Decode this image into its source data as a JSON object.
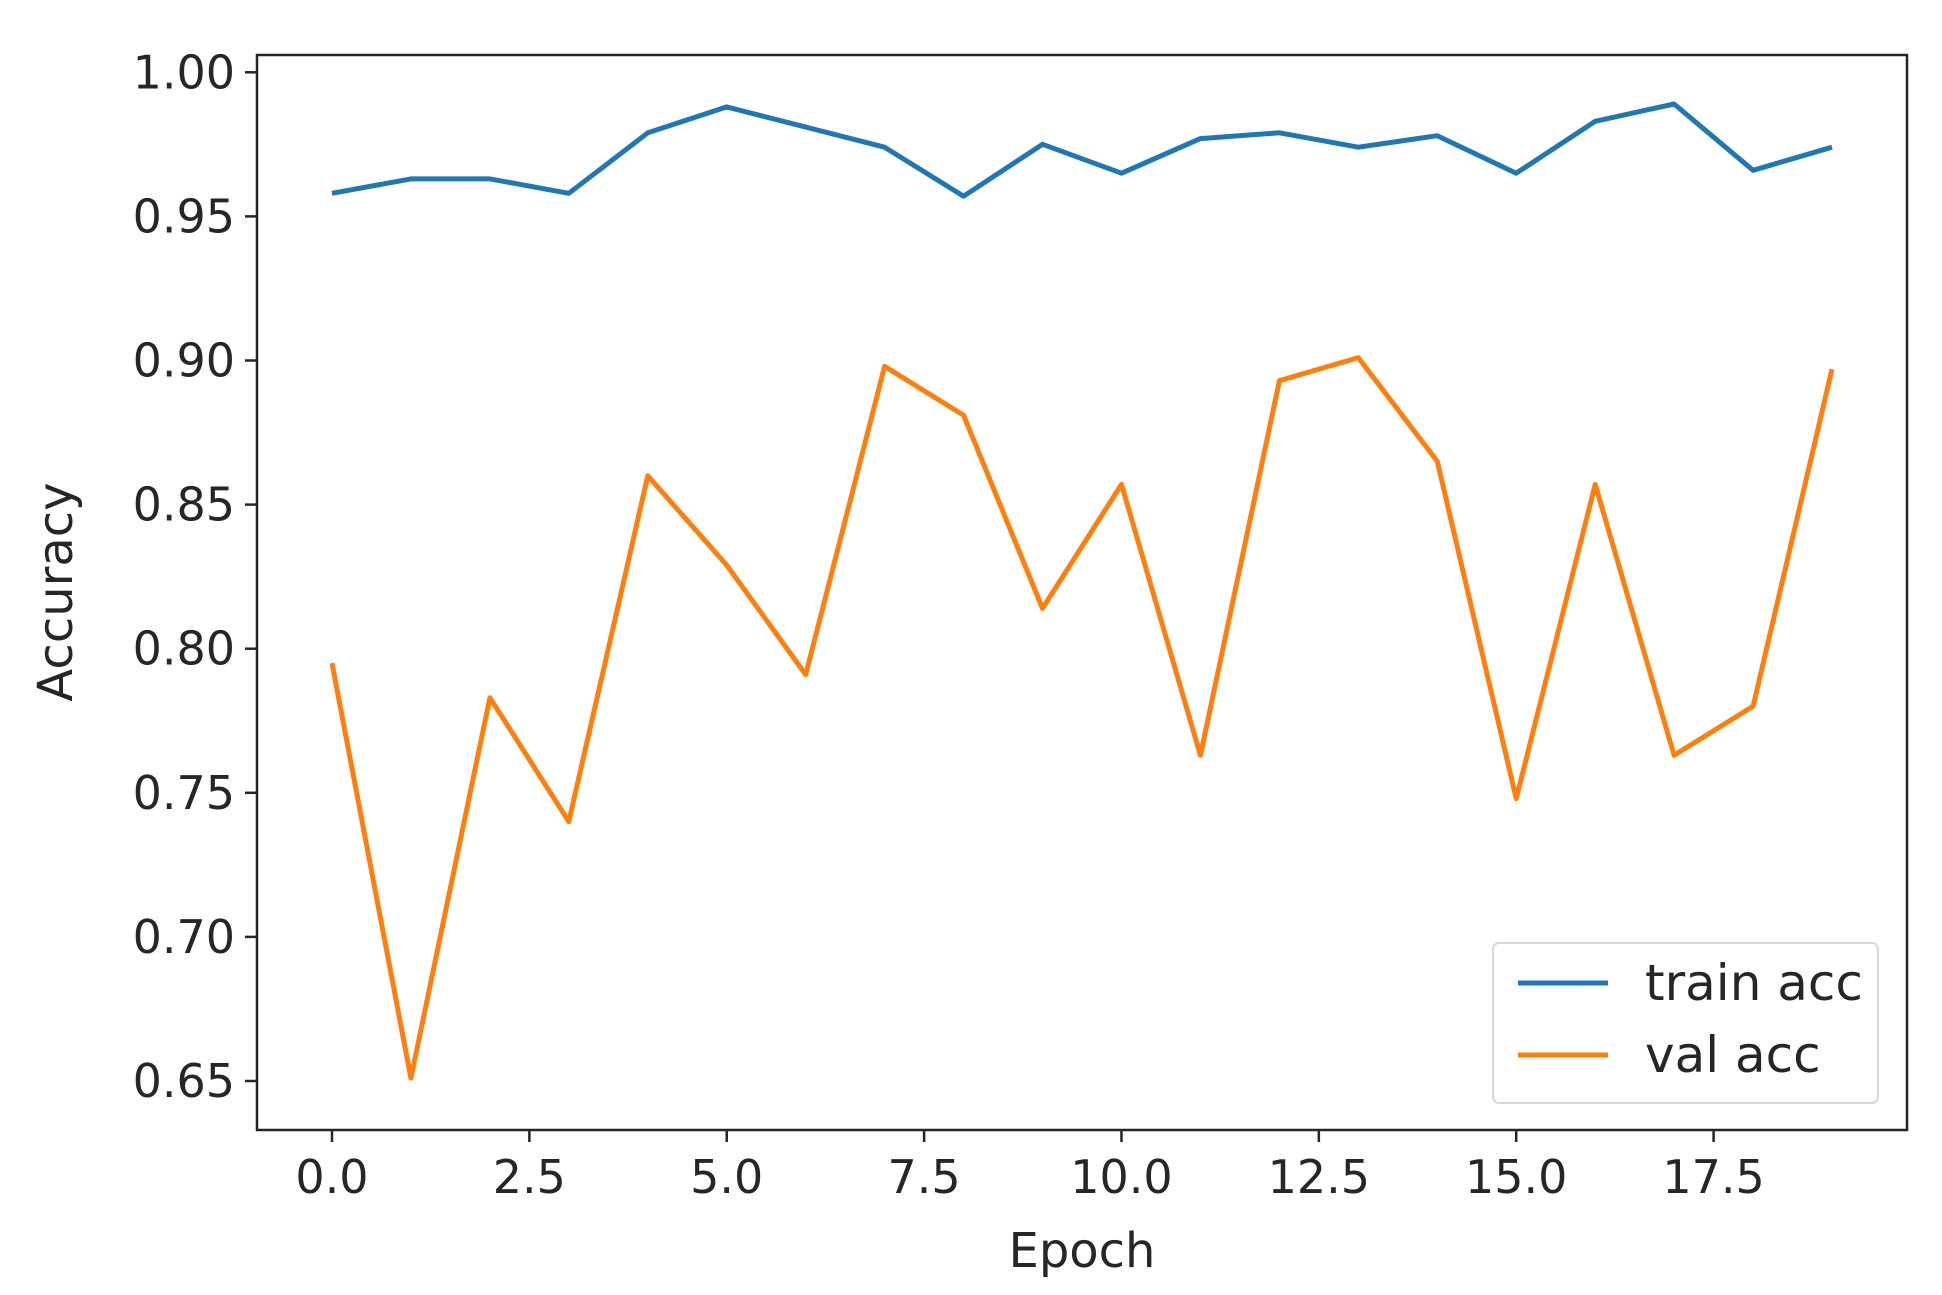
{
  "chart_data": {
    "type": "line",
    "title": "",
    "xlabel": "Epoch",
    "ylabel": "Accuracy",
    "xlim": [
      -0.95,
      19.95
    ],
    "ylim": [
      0.633,
      1.006
    ],
    "xticks": [
      0.0,
      2.5,
      5.0,
      7.5,
      10.0,
      12.5,
      15.0,
      17.5
    ],
    "xtick_labels": [
      "0.0",
      "2.5",
      "5.0",
      "7.5",
      "10.0",
      "12.5",
      "15.0",
      "17.5"
    ],
    "yticks": [
      0.65,
      0.7,
      0.75,
      0.8,
      0.85,
      0.9,
      0.95,
      1.0
    ],
    "ytick_labels": [
      "0.65",
      "0.70",
      "0.75",
      "0.80",
      "0.85",
      "0.90",
      "0.95",
      "1.00"
    ],
    "grid": false,
    "legend_position": "lower-right",
    "x": [
      0,
      1,
      2,
      3,
      4,
      5,
      6,
      7,
      8,
      9,
      10,
      11,
      12,
      13,
      14,
      15,
      16,
      17,
      18,
      19
    ],
    "series": [
      {
        "name": "train acc",
        "color": "#1f77b4",
        "values": [
          0.958,
          0.963,
          0.963,
          0.958,
          0.979,
          0.988,
          0.981,
          0.974,
          0.957,
          0.975,
          0.965,
          0.977,
          0.979,
          0.974,
          0.978,
          0.965,
          0.983,
          0.989,
          0.966,
          0.974
        ]
      },
      {
        "name": "val acc",
        "color": "#ff7f0e",
        "values": [
          0.795,
          0.651,
          0.783,
          0.74,
          0.86,
          0.829,
          0.791,
          0.898,
          0.881,
          0.814,
          0.857,
          0.763,
          0.893,
          0.901,
          0.865,
          0.748,
          0.857,
          0.763,
          0.78,
          0.897
        ]
      }
    ]
  }
}
